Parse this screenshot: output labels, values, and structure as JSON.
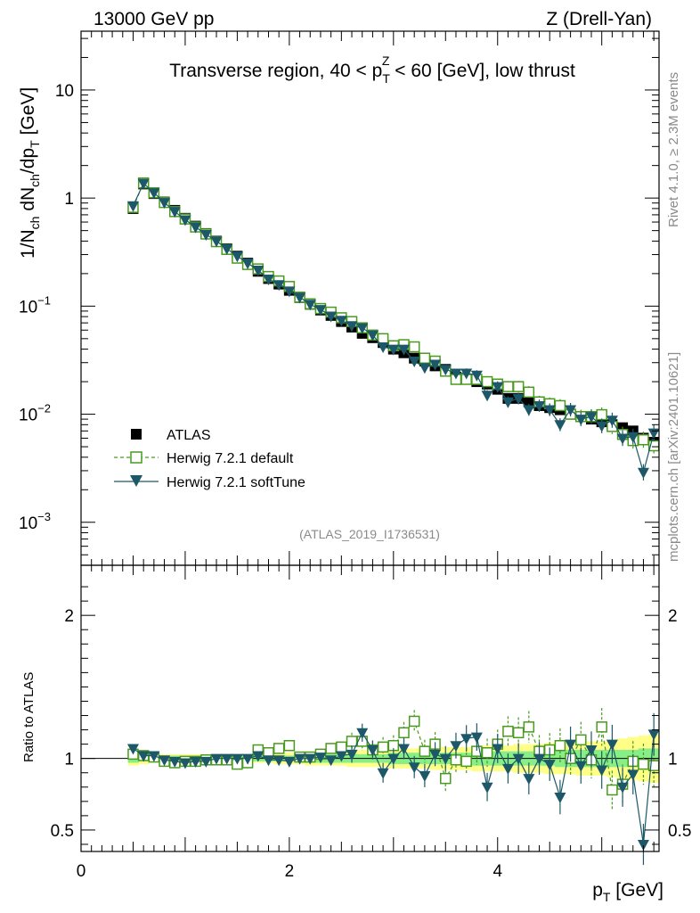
{
  "header": {
    "left": "13000 GeV pp",
    "right": "Z (Drell-Yan)"
  },
  "side_text": {
    "rivet": "Rivet 4.1.0, ≥ 2.3M events",
    "mcplots": "mcplots.cern.ch [arXiv:2401.10621]"
  },
  "analysis_id": "(ATLAS_2019_I1736531)",
  "colors": {
    "atlas": "#000000",
    "default": "#4a9a1f",
    "softtune": "#1c5868",
    "band_yellow": "#ffff88",
    "band_green": "#88ee88"
  },
  "chart_data": [
    {
      "type": "scatter",
      "title_parts": {
        "prefix": "Transverse region, 40 < p",
        "sub": "T",
        "sup": "Z",
        "suffix": " < 60 [GeV], low thrust"
      },
      "ylabel_parts": [
        "1/N",
        "ch",
        " dN",
        "ch",
        "/dp",
        "T",
        " [GeV]"
      ],
      "yscale": "log",
      "ylim": [
        0.0004,
        35
      ],
      "xlim": [
        0,
        5.55
      ],
      "yticks": [
        {
          "v": 0.001,
          "base": "10",
          "exp": "−3"
        },
        {
          "v": 0.01,
          "base": "10",
          "exp": "−2"
        },
        {
          "v": 0.1,
          "base": "10",
          "exp": "−1"
        },
        {
          "v": 1,
          "label": "1"
        },
        {
          "v": 10,
          "label": "10"
        }
      ],
      "legend": {
        "placement": "bottom-left",
        "entries": [
          "ATLAS",
          "Herwig 7.2.1 default",
          "Herwig 7.2.1 softTune"
        ]
      },
      "x": [
        0.5,
        0.6,
        0.7,
        0.8,
        0.9,
        1.0,
        1.1,
        1.2,
        1.3,
        1.4,
        1.5,
        1.6,
        1.7,
        1.8,
        1.9,
        2.0,
        2.1,
        2.2,
        2.3,
        2.4,
        2.5,
        2.6,
        2.7,
        2.8,
        2.9,
        3.0,
        3.1,
        3.2,
        3.3,
        3.4,
        3.5,
        3.6,
        3.7,
        3.8,
        3.9,
        4.0,
        4.1,
        4.2,
        4.3,
        4.4,
        4.5,
        4.6,
        4.7,
        4.8,
        4.9,
        5.0,
        5.1,
        5.2,
        5.3,
        5.4,
        5.5
      ],
      "series": [
        {
          "name": "ATLAS",
          "marker": "square",
          "values": [
            0.8,
            1.35,
            1.1,
            0.92,
            0.77,
            0.65,
            0.55,
            0.47,
            0.4,
            0.34,
            0.29,
            0.25,
            0.21,
            0.18,
            0.16,
            0.14,
            0.12,
            0.104,
            0.092,
            0.082,
            0.072,
            0.064,
            0.056,
            0.051,
            0.046,
            0.04,
            0.037,
            0.033,
            0.031,
            0.028,
            0.026,
            0.022,
            0.021,
            0.02,
            0.019,
            0.017,
            0.014,
            0.014,
            0.013,
            0.012,
            0.0115,
            0.011,
            0.01,
            0.0095,
            0.009,
            0.0085,
            0.008,
            0.0075,
            0.007,
            0.006,
            0.0055
          ]
        },
        {
          "name": "Herwig 7.2.1 default",
          "marker": "open-square",
          "dashed": true,
          "values": [
            0.82,
            1.38,
            1.12,
            0.91,
            0.75,
            0.64,
            0.54,
            0.465,
            0.395,
            0.335,
            0.278,
            0.243,
            0.221,
            0.188,
            0.171,
            0.152,
            0.121,
            0.105,
            0.095,
            0.088,
            0.078,
            0.072,
            0.063,
            0.054,
            0.05,
            0.043,
            0.044,
            0.042,
            0.033,
            0.031,
            0.025,
            0.021,
            0.021,
            0.021,
            0.02,
            0.019,
            0.018,
            0.018,
            0.016,
            0.013,
            0.0125,
            0.012,
            0.01,
            0.0095,
            0.0095,
            0.0099,
            0.0077,
            0.0065,
            0.0057,
            0.0058,
            0.0051
          ]
        },
        {
          "name": "Herwig 7.2.1 softTune",
          "marker": "triangle-down",
          "values": [
            0.85,
            1.37,
            1.12,
            0.91,
            0.75,
            0.63,
            0.54,
            0.46,
            0.4,
            0.34,
            0.29,
            0.25,
            0.215,
            0.178,
            0.158,
            0.138,
            0.121,
            0.104,
            0.093,
            0.081,
            0.074,
            0.066,
            0.063,
            0.054,
            0.042,
            0.04,
            0.04,
            0.031,
            0.027,
            0.029,
            0.026,
            0.024,
            0.024,
            0.023,
            0.015,
            0.018,
            0.013,
            0.014,
            0.011,
            0.012,
            0.011,
            0.008,
            0.011,
            0.009,
            0.0095,
            0.0078,
            0.0088,
            0.006,
            0.0062,
            0.0029,
            0.0067
          ]
        }
      ]
    },
    {
      "type": "scatter",
      "ylabel": "Ratio to ATLAS",
      "xlabel_parts": [
        "p",
        "T",
        " [GeV]"
      ],
      "ylim": [
        0.35,
        2.35
      ],
      "xlim": [
        0,
        5.55
      ],
      "yticks": [
        {
          "v": 0.5,
          "label": "0.5"
        },
        {
          "v": 1,
          "label": "1"
        },
        {
          "v": 2,
          "label": "2"
        }
      ],
      "xticks": [
        {
          "v": 0,
          "label": "0"
        },
        {
          "v": 2,
          "label": "2"
        },
        {
          "v": 4,
          "label": "4"
        }
      ],
      "x": [
        0.5,
        0.6,
        0.7,
        0.8,
        0.9,
        1.0,
        1.1,
        1.2,
        1.3,
        1.4,
        1.5,
        1.6,
        1.7,
        1.8,
        1.9,
        2.0,
        2.1,
        2.2,
        2.3,
        2.4,
        2.5,
        2.6,
        2.7,
        2.8,
        2.9,
        3.0,
        3.1,
        3.2,
        3.3,
        3.4,
        3.5,
        3.6,
        3.7,
        3.8,
        3.9,
        4.0,
        4.1,
        4.2,
        4.3,
        4.4,
        4.5,
        4.6,
        4.7,
        4.8,
        4.9,
        5.0,
        5.1,
        5.2,
        5.3,
        5.4,
        5.5
      ],
      "bands": {
        "yellow_halfwidth": [
          0.05,
          0.04,
          0.03,
          0.03,
          0.03,
          0.03,
          0.03,
          0.03,
          0.03,
          0.03,
          0.03,
          0.03,
          0.03,
          0.03,
          0.04,
          0.04,
          0.04,
          0.05,
          0.05,
          0.05,
          0.05,
          0.06,
          0.06,
          0.06,
          0.06,
          0.07,
          0.07,
          0.07,
          0.07,
          0.08,
          0.08,
          0.08,
          0.08,
          0.09,
          0.09,
          0.09,
          0.09,
          0.1,
          0.1,
          0.1,
          0.11,
          0.11,
          0.11,
          0.12,
          0.12,
          0.12,
          0.13,
          0.14,
          0.15,
          0.16,
          0.17
        ],
        "green_halfwidth": [
          0.03,
          0.02,
          0.02,
          0.02,
          0.02,
          0.02,
          0.02,
          0.02,
          0.02,
          0.02,
          0.02,
          0.02,
          0.02,
          0.02,
          0.02,
          0.02,
          0.02,
          0.03,
          0.03,
          0.03,
          0.03,
          0.03,
          0.03,
          0.03,
          0.03,
          0.04,
          0.04,
          0.04,
          0.04,
          0.04,
          0.04,
          0.04,
          0.04,
          0.05,
          0.05,
          0.05,
          0.05,
          0.05,
          0.05,
          0.05,
          0.05,
          0.06,
          0.06,
          0.06,
          0.06,
          0.06,
          0.06,
          0.06,
          0.06,
          0.07,
          0.07
        ]
      },
      "series": [
        {
          "name": "Herwig 7.2.1 default",
          "marker": "open-square",
          "dashed": true,
          "values": [
            1.03,
            1.02,
            1.01,
            0.98,
            0.97,
            0.98,
            0.98,
            0.99,
            0.99,
            0.99,
            0.96,
            0.97,
            1.06,
            1.04,
            1.07,
            1.09,
            1.01,
            1.01,
            1.03,
            1.07,
            1.08,
            1.12,
            1.12,
            1.06,
            1.08,
            1.09,
            1.18,
            1.26,
            1.05,
            1.1,
            0.86,
            0.99,
            0.98,
            1.05,
            1.04,
            1.1,
            1.19,
            1.18,
            1.22,
            1.05,
            1.06,
            1.09,
            1.0,
            1.13,
            0.99,
            1.22,
            0.78,
            0.82,
            0.98,
            0.96,
            0.95
          ]
        },
        {
          "name": "Herwig 7.2.1 softTune",
          "marker": "triangle-down",
          "values": [
            1.07,
            1.02,
            1.02,
            0.99,
            0.98,
            0.97,
            0.98,
            0.98,
            1.0,
            1.0,
            1.0,
            1.0,
            1.02,
            0.99,
            0.99,
            0.98,
            1.0,
            1.0,
            1.01,
            0.99,
            1.02,
            1.03,
            1.18,
            1.06,
            0.9,
            1.0,
            1.07,
            0.94,
            0.88,
            1.03,
            1.0,
            1.09,
            1.14,
            1.15,
            0.8,
            1.07,
            0.93,
            1.0,
            0.86,
            1.0,
            0.96,
            0.73,
            1.1,
            0.95,
            1.06,
            0.92,
            1.1,
            0.8,
            0.89,
            0.4,
            1.17
          ]
        }
      ]
    }
  ]
}
